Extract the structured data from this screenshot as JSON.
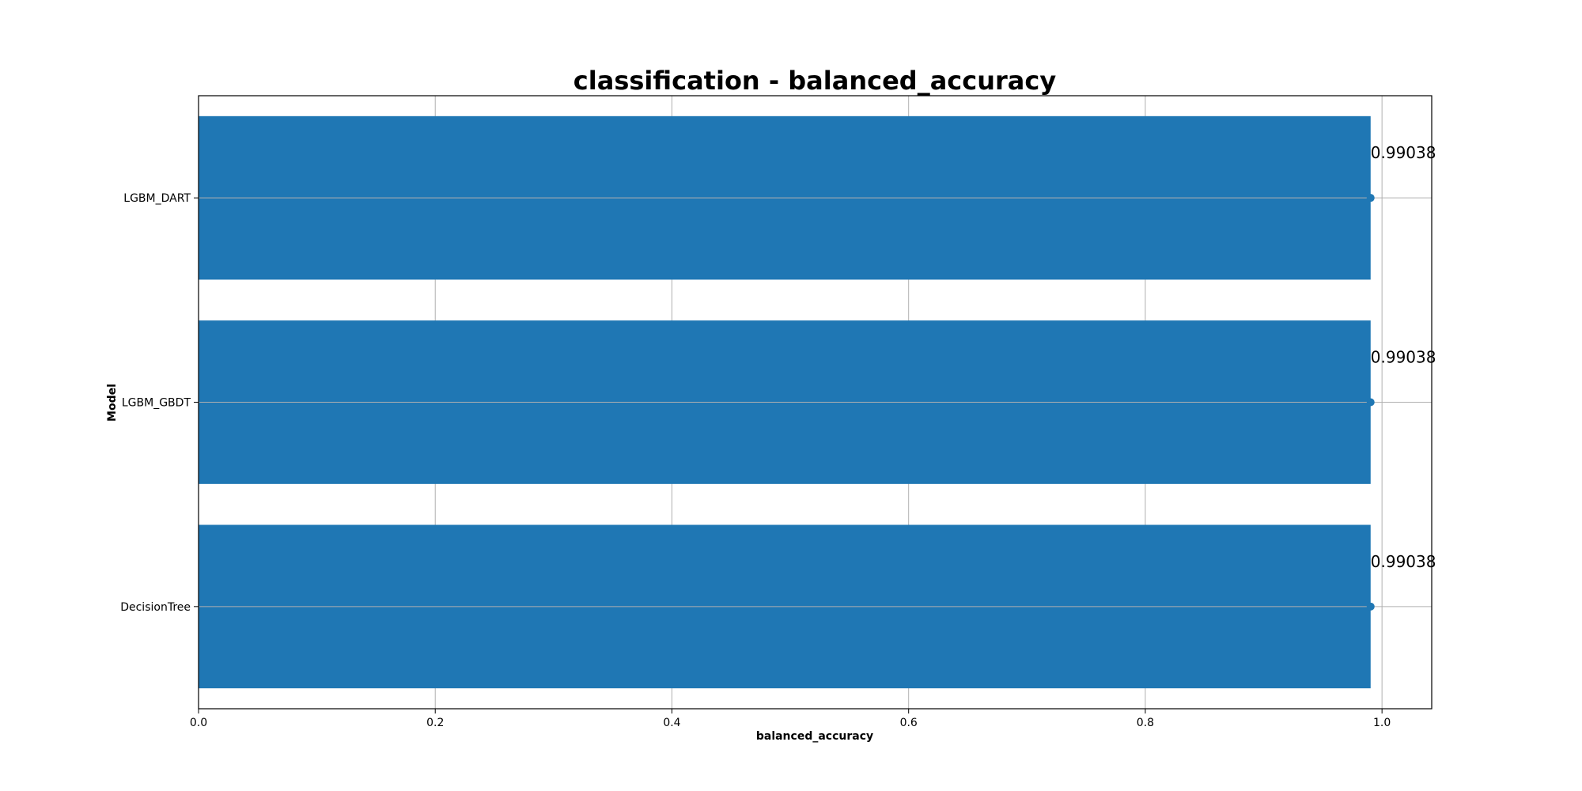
{
  "chart_data": {
    "type": "bar",
    "orientation": "horizontal",
    "title": "classification - balanced_accuracy",
    "xlabel": "balanced_accuracy",
    "ylabel": "Model",
    "categories": [
      "LGBM_DART",
      "LGBM_GBDT",
      "DecisionTree"
    ],
    "values": [
      0.99038,
      0.99038,
      0.99038
    ],
    "data_labels": [
      "0.99038",
      "0.99038",
      "0.99038"
    ],
    "xlim": [
      0.0,
      1.042
    ],
    "xticks": [
      0.0,
      0.2,
      0.4,
      0.6,
      0.8,
      1.0
    ],
    "xtick_labels": [
      "0.0",
      "0.2",
      "0.4",
      "0.6",
      "0.8",
      "1.0"
    ],
    "grid": true,
    "marker_at_bar_end": true,
    "colors": {
      "bar": "#1f77b4",
      "marker": "#1f77b4",
      "grid": "#b0b0b0"
    }
  }
}
